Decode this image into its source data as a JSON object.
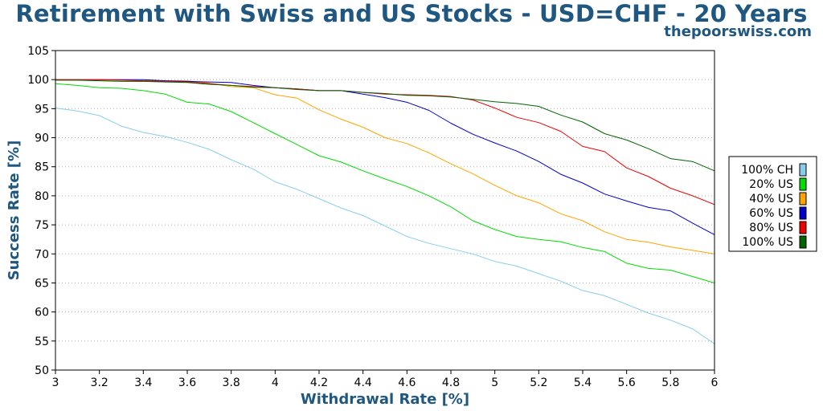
{
  "header": {
    "title": "Retirement with Swiss and US Stocks - USD=CHF - 20 Years",
    "site": "thepoorswiss.com"
  },
  "chart_data": {
    "type": "line",
    "title": "Retirement with Swiss and US Stocks - USD=CHF - 20 Years",
    "xlabel": "Withdrawal Rate [%]",
    "ylabel": "Success Rate [%]",
    "xlim": [
      3,
      6
    ],
    "ylim": [
      50,
      105
    ],
    "x_ticks": [
      "3",
      "3.2",
      "3.4",
      "3.6",
      "3.8",
      "4",
      "4.2",
      "4.4",
      "4.6",
      "4.8",
      "5",
      "5.2",
      "5.4",
      "5.6",
      "5.8",
      "6"
    ],
    "y_ticks": [
      "105",
      "100",
      "95",
      "90",
      "85",
      "80",
      "75",
      "70",
      "65",
      "60",
      "55",
      "50"
    ],
    "grid": "horizontal dotted",
    "legend_position": "right",
    "x": [
      3.0,
      3.1,
      3.2,
      3.3,
      3.4,
      3.5,
      3.6,
      3.7,
      3.8,
      3.9,
      4.0,
      4.1,
      4.2,
      4.3,
      4.4,
      4.5,
      4.6,
      4.7,
      4.8,
      4.9,
      5.0,
      5.1,
      5.2,
      5.3,
      5.4,
      5.5,
      5.6,
      5.7,
      5.8,
      5.9,
      6.0
    ],
    "series": [
      {
        "name": "100% CH",
        "color": "#87ceeb",
        "values": [
          95.1,
          94.6,
          93.8,
          92.0,
          90.9,
          90.2,
          89.2,
          88.0,
          86.2,
          84.6,
          82.4,
          81.1,
          79.5,
          77.9,
          76.6,
          74.8,
          73.0,
          71.8,
          70.9,
          70.0,
          68.7,
          67.9,
          66.6,
          65.3,
          63.7,
          62.8,
          61.3,
          59.8,
          58.6,
          57.1,
          54.5
        ]
      },
      {
        "name": "20% US",
        "color": "#00dd00",
        "values": [
          99.3,
          99.0,
          98.6,
          98.5,
          98.1,
          97.5,
          96.1,
          95.8,
          94.5,
          92.6,
          90.7,
          88.8,
          86.9,
          85.8,
          84.3,
          82.9,
          81.6,
          80.0,
          78.1,
          75.7,
          74.2,
          73.0,
          72.5,
          72.1,
          71.1,
          70.4,
          68.4,
          67.5,
          67.2,
          66.1,
          65.0
        ]
      },
      {
        "name": "40% US",
        "color": "#ffa500",
        "values": [
          99.9,
          99.9,
          99.9,
          99.9,
          99.8,
          99.8,
          99.8,
          99.4,
          98.8,
          98.6,
          97.4,
          96.8,
          94.8,
          93.2,
          91.8,
          90.0,
          89.0,
          87.4,
          85.5,
          83.8,
          81.8,
          80.0,
          78.8,
          76.9,
          75.7,
          73.8,
          72.5,
          72.0,
          71.2,
          70.6,
          70.0
        ]
      },
      {
        "name": "60% US",
        "color": "#0000cc",
        "values": [
          100.0,
          100.0,
          100.0,
          100.0,
          100.0,
          99.8,
          99.7,
          99.6,
          99.5,
          99.0,
          98.6,
          98.4,
          98.1,
          98.1,
          97.5,
          96.9,
          96.1,
          94.7,
          92.5,
          90.6,
          89.1,
          87.7,
          85.9,
          83.7,
          82.2,
          80.3,
          79.1,
          78.0,
          77.4,
          75.3,
          73.3
        ]
      },
      {
        "name": "80% US",
        "color": "#ee0000",
        "values": [
          100.0,
          100.0,
          100.0,
          99.9,
          99.8,
          99.7,
          99.6,
          99.3,
          99.0,
          98.8,
          98.6,
          98.4,
          98.1,
          98.1,
          97.8,
          97.5,
          97.4,
          97.3,
          97.1,
          96.5,
          95.1,
          93.5,
          92.6,
          91.1,
          88.5,
          87.6,
          84.8,
          83.3,
          81.3,
          80.0,
          78.5
        ]
      },
      {
        "name": "100% US",
        "color": "#006400",
        "values": [
          99.9,
          99.9,
          99.8,
          99.7,
          99.7,
          99.6,
          99.5,
          99.2,
          99.0,
          98.7,
          98.6,
          98.3,
          98.1,
          98.1,
          97.8,
          97.6,
          97.3,
          97.2,
          97.0,
          96.6,
          96.2,
          95.9,
          95.4,
          93.9,
          92.7,
          90.7,
          89.6,
          88.1,
          86.4,
          85.9,
          84.3
        ]
      }
    ]
  }
}
